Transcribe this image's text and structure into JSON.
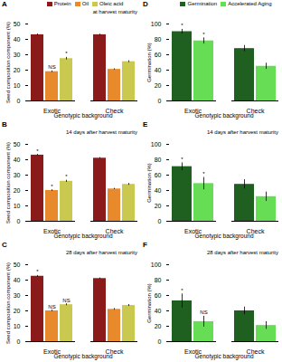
{
  "chart_data": [
    {
      "type": "bar",
      "panel_label": "A",
      "subtitle": "at harvest maturity",
      "x_label": "Genotypic background",
      "y_label": "Seed composition component (%)",
      "categories": [
        "Exotic",
        "Check"
      ],
      "series": [
        {
          "name": "Protein",
          "color": "#8b1a1a",
          "values": [
            43,
            43
          ],
          "errors": [
            0.5,
            0.4
          ],
          "annotations": [
            null,
            null
          ]
        },
        {
          "name": "Oil",
          "color": "#e8892b",
          "values": [
            19,
            20.5
          ],
          "errors": [
            0.5,
            0.4
          ],
          "annotations": [
            "NS",
            null
          ]
        },
        {
          "name": "Oleic acid",
          "color": "#c9c94f",
          "values": [
            27.5,
            25.5
          ],
          "errors": [
            0.8,
            0.6
          ],
          "annotations": [
            "*",
            null
          ]
        }
      ],
      "ylim": [
        0,
        50
      ],
      "yticks": [
        0,
        10,
        20,
        30,
        40,
        50
      ],
      "legend": "top"
    },
    {
      "type": "bar",
      "panel_label": "B",
      "subtitle": "14 days after harvest maturity",
      "x_label": "Genotypic background",
      "y_label": "Seed composition component (%)",
      "categories": [
        "Exotic",
        "Check"
      ],
      "series": [
        {
          "name": "Protein",
          "color": "#8b1a1a",
          "values": [
            43,
            41
          ],
          "errors": [
            0.5,
            0.4
          ],
          "annotations": [
            "*",
            null
          ]
        },
        {
          "name": "Oil",
          "color": "#e8892b",
          "values": [
            20,
            21
          ],
          "errors": [
            0.5,
            0.4
          ],
          "annotations": [
            "*",
            null
          ]
        },
        {
          "name": "Oleic acid",
          "color": "#c9c94f",
          "values": [
            26,
            24
          ],
          "errors": [
            0.7,
            0.6
          ],
          "annotations": [
            "*",
            null
          ]
        }
      ],
      "ylim": [
        0,
        50
      ],
      "yticks": [
        0,
        10,
        20,
        30,
        40,
        50
      ]
    },
    {
      "type": "bar",
      "panel_label": "C",
      "subtitle": "28 days after harvest maturity",
      "x_label": "Genotypic background",
      "y_label": "Seed composition component (%)",
      "categories": [
        "Exotic",
        "Check"
      ],
      "series": [
        {
          "name": "Protein",
          "color": "#8b1a1a",
          "values": [
            42.5,
            41
          ],
          "errors": [
            0.5,
            0.4
          ],
          "annotations": [
            "*",
            null
          ]
        },
        {
          "name": "Oil",
          "color": "#e8892b",
          "values": [
            20,
            21
          ],
          "errors": [
            0.5,
            0.5
          ],
          "annotations": [
            "NS",
            null
          ]
        },
        {
          "name": "Oleic acid",
          "color": "#c9c94f",
          "values": [
            24,
            23.5
          ],
          "errors": [
            0.6,
            0.6
          ],
          "annotations": [
            "NS",
            null
          ]
        }
      ],
      "ylim": [
        0,
        50
      ],
      "yticks": [
        0,
        10,
        20,
        30,
        40,
        50
      ]
    },
    {
      "type": "bar",
      "panel_label": "D",
      "x_label": "Genotypic background",
      "y_label": "Germination (%)",
      "categories": [
        "Exotic",
        "Check"
      ],
      "series": [
        {
          "name": "Germination",
          "color": "#1f5f1f",
          "values": [
            90,
            68
          ],
          "errors": [
            3,
            4
          ],
          "annotations": [
            "*",
            null
          ]
        },
        {
          "name": "Accelerated Aging",
          "color": "#66dd55",
          "values": [
            78,
            45
          ],
          "errors": [
            4,
            4
          ],
          "annotations": [
            "*",
            null
          ]
        }
      ],
      "ylim": [
        0,
        100
      ],
      "yticks": [
        0,
        20,
        40,
        60,
        80,
        100
      ],
      "legend": "top"
    },
    {
      "type": "bar",
      "panel_label": "E",
      "subtitle": "14 days after harvest maturity",
      "x_label": "Genotypic background",
      "y_label": "Germination (%)",
      "categories": [
        "Exotic",
        "Check"
      ],
      "series": [
        {
          "name": "Germination",
          "color": "#1f5f1f",
          "values": [
            71,
            48
          ],
          "errors": [
            5,
            6
          ],
          "annotations": [
            "*",
            null
          ]
        },
        {
          "name": "Accelerated Aging",
          "color": "#66dd55",
          "values": [
            49,
            32
          ],
          "errors": [
            8,
            6
          ],
          "annotations": [
            "*",
            null
          ]
        }
      ],
      "ylim": [
        0,
        100
      ],
      "yticks": [
        0,
        20,
        40,
        60,
        80,
        100
      ]
    },
    {
      "type": "bar",
      "panel_label": "F",
      "subtitle": "28 days after harvest maturity",
      "x_label": "Genotypic background",
      "y_label": "Germination (%)",
      "categories": [
        "Exotic",
        "Check"
      ],
      "series": [
        {
          "name": "Germination",
          "color": "#1f5f1f",
          "values": [
            53,
            40
          ],
          "errors": [
            9,
            5
          ],
          "annotations": [
            "*",
            null
          ]
        },
        {
          "name": "Accelerated Aging",
          "color": "#66dd55",
          "values": [
            26,
            21
          ],
          "errors": [
            7,
            5
          ],
          "annotations": [
            "NS",
            null
          ]
        }
      ],
      "ylim": [
        0,
        100
      ],
      "yticks": [
        0,
        20,
        40,
        60,
        80,
        100
      ]
    }
  ]
}
